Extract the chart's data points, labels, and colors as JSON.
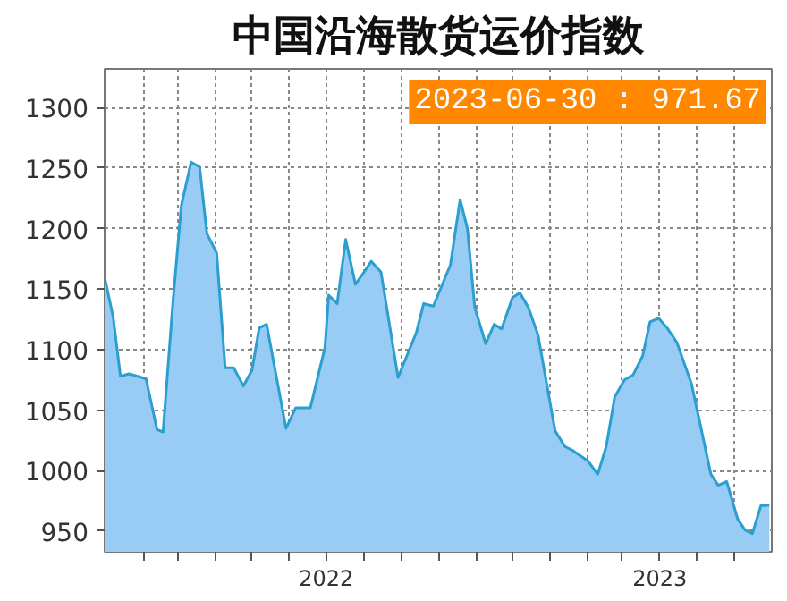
{
  "chart_data": {
    "type": "area",
    "title": "中国沿海散货运价指数",
    "annotations": [
      "2023-06-30 : 971.67"
    ],
    "x": [
      "2021-12-31",
      "2022-01-07",
      "2022-01-13",
      "2022-01-20",
      "2022-02-03",
      "2022-02-12",
      "2022-02-17",
      "2022-02-25",
      "2022-03-04",
      "2022-03-12",
      "2022-03-19",
      "2022-03-25",
      "2022-04-02",
      "2022-04-09",
      "2022-04-16",
      "2022-04-24",
      "2022-05-01",
      "2022-05-07",
      "2022-05-13",
      "2022-05-29",
      "2022-06-06",
      "2022-06-18",
      "2022-06-30",
      "2022-07-03",
      "2022-07-10",
      "2022-07-17",
      "2022-07-25",
      "2022-08-01",
      "2022-08-07",
      "2022-08-15",
      "2022-08-29",
      "2022-09-13",
      "2022-09-19",
      "2022-09-27",
      "2022-10-11",
      "2022-10-19",
      "2022-10-25",
      "2022-10-31",
      "2022-11-09",
      "2022-11-16",
      "2022-11-22",
      "2022-12-01",
      "2022-12-07",
      "2022-12-14",
      "2022-12-22",
      "2023-01-05",
      "2023-01-13",
      "2023-01-19",
      "2023-02-01",
      "2023-02-09",
      "2023-02-16",
      "2023-02-23",
      "2023-03-03",
      "2023-03-10",
      "2023-03-18",
      "2023-03-24",
      "2023-03-31",
      "2023-04-07",
      "2023-04-15",
      "2023-04-27",
      "2023-05-13",
      "2023-05-19",
      "2023-05-26",
      "2023-06-04",
      "2023-06-10",
      "2023-06-16",
      "2023-06-23",
      "2023-06-30"
    ],
    "series": [
      {
        "color": "#2a9fd0",
        "values": [
          1160,
          1127,
          1078,
          1080,
          1076,
          1034,
          1032,
          1138,
          1219,
          1255,
          1251,
          1196,
          1180,
          1085,
          1085,
          1070,
          1083,
          1118,
          1121,
          1035,
          1052,
          1052,
          1102,
          1145,
          1138,
          1191,
          1154,
          1164,
          1173,
          1164,
          1077,
          1114,
          1138,
          1136,
          1170,
          1224,
          1200,
          1135,
          1105,
          1121,
          1117,
          1143,
          1147,
          1135,
          1112,
          1033,
          1020,
          1017,
          1008,
          997,
          1020,
          1061,
          1075,
          1079,
          1095,
          1123,
          1126,
          1118,
          1106,
          1072,
          997,
          988,
          991,
          960,
          951,
          948,
          971,
          971.67
        ]
      }
    ],
    "ylim": [
      933,
      1332
    ],
    "yticks": [
      950,
      1000,
      1050,
      1100,
      1150,
      1200,
      1250,
      1300
    ],
    "xlim": [
      "2021-12-31",
      "2023-07-02"
    ],
    "xticks": [
      {
        "value": "2022-02-01",
        "label": null
      },
      {
        "value": "2022-03-01",
        "label": null
      },
      {
        "value": "2022-04-01",
        "label": null
      },
      {
        "value": "2022-05-01",
        "label": null
      },
      {
        "value": "2022-06-01",
        "label": null
      },
      {
        "value": "2022-07-01",
        "label": "2022"
      },
      {
        "value": "2022-08-01",
        "label": null
      },
      {
        "value": "2022-09-01",
        "label": null
      },
      {
        "value": "2022-10-01",
        "label": null
      },
      {
        "value": "2022-11-01",
        "label": null
      },
      {
        "value": "2022-12-01",
        "label": null
      },
      {
        "value": "2023-01-01",
        "label": null
      },
      {
        "value": "2023-02-01",
        "label": null
      },
      {
        "value": "2023-03-01",
        "label": null
      },
      {
        "value": "2023-04-01",
        "label": "2023"
      },
      {
        "value": "2023-05-01",
        "label": null
      },
      {
        "value": "2023-06-01",
        "label": null
      }
    ],
    "grid": true
  }
}
